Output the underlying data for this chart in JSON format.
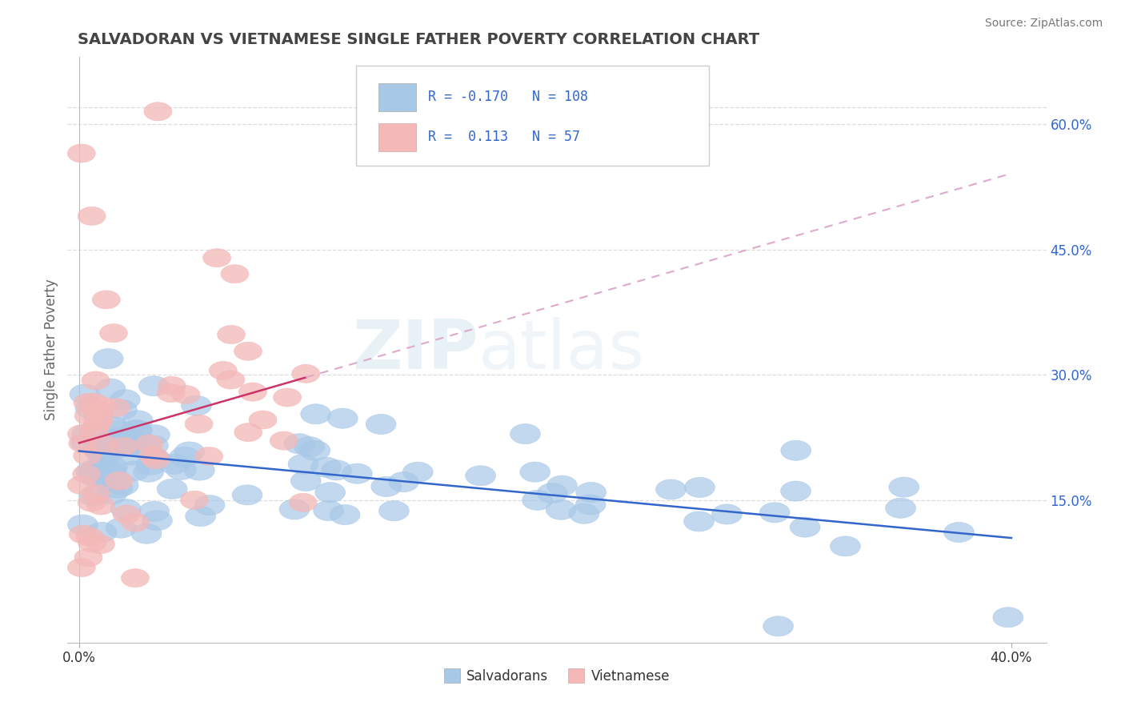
{
  "title": "SALVADORAN VS VIETNAMESE SINGLE FATHER POVERTY CORRELATION CHART",
  "source": "Source: ZipAtlas.com",
  "ylabel": "Single Father Poverty",
  "xlim": [
    -0.005,
    0.415
  ],
  "ylim": [
    -0.02,
    0.68
  ],
  "plot_xlim": [
    0.0,
    0.4
  ],
  "xticks": [
    0.0,
    0.4
  ],
  "xticklabels": [
    "0.0%",
    "40.0%"
  ],
  "yticks_right": [
    0.15,
    0.3,
    0.45,
    0.6
  ],
  "yticklabels_right": [
    "15.0%",
    "30.0%",
    "45.0%",
    "60.0%"
  ],
  "blue_color": "#a8c8e8",
  "pink_color": "#f4b8b8",
  "blue_line_color": "#3366cc",
  "pink_line_color": "#cc3366",
  "pink_line_color_dashed": "#ddaacc",
  "R_blue": -0.17,
  "N_blue": 108,
  "R_pink": 0.113,
  "N_pink": 57,
  "watermark_zip": "ZIP",
  "watermark_atlas": "atlas",
  "background_color": "#ffffff",
  "grid_color": "#dddddd",
  "title_color": "#444444",
  "legend_text_color": "#3366cc",
  "seed": 123
}
